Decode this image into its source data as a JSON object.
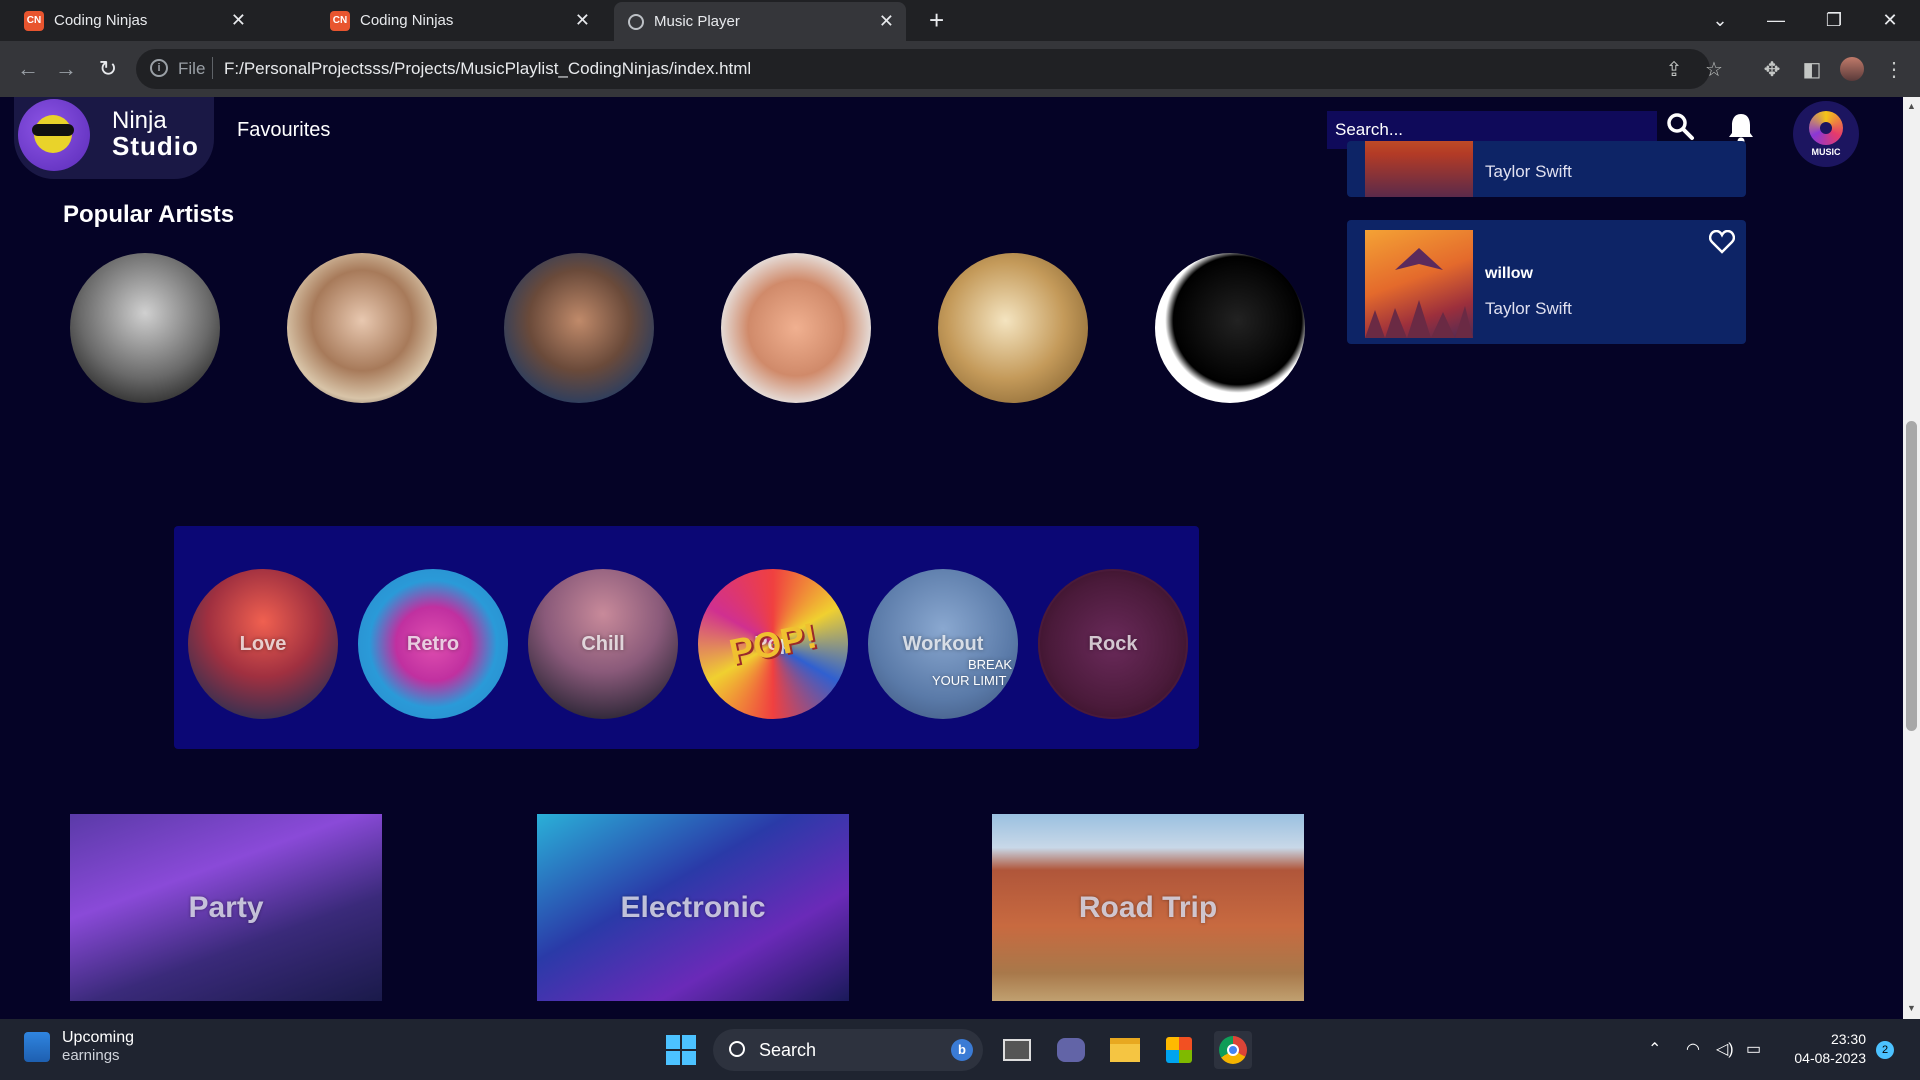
{
  "browser": {
    "tabs": [
      {
        "title": "Coding Ninjas",
        "icon": "coding-ninjas-favicon"
      },
      {
        "title": "Coding Ninjas",
        "icon": "coding-ninjas-favicon"
      },
      {
        "title": "Music Player",
        "icon": "globe-icon"
      }
    ],
    "new_tab": "+",
    "url_scheme": "File",
    "url": "F:/PersonalProjectsss/Projects/MusicPlaylist_CodingNinjas/index.html"
  },
  "header": {
    "logo_line1": "Ninja",
    "logo_line2": "Studio",
    "nav_favourites": "Favourites",
    "search_placeholder": "Search...",
    "music_logo_text": "MUSIC"
  },
  "popular_artists": {
    "title": "Popular Artists",
    "count": 6
  },
  "genres": [
    "Love",
    "Retro",
    "Chill",
    "Pop",
    "Workout",
    "Rock"
  ],
  "genre_overlay_texts": {
    "pop_art": "POP!",
    "workout_art": [
      "BREAK",
      "YOUR LIMIT"
    ]
  },
  "mood_tiles": [
    "Party",
    "Electronic",
    "Road Trip"
  ],
  "song_list": [
    {
      "title": "",
      "artist": "Taylor Swift"
    },
    {
      "title": "willow",
      "artist": "Taylor Swift"
    }
  ],
  "taskbar": {
    "weather_line1": "Upcoming",
    "weather_line2": "earnings",
    "search_label": "Search",
    "bing_label": "b",
    "time": "23:30",
    "date": "04-08-2023",
    "notification_count": "2"
  },
  "colors": {
    "page_bg": "#050326",
    "genre_panel": "#0b0775",
    "song_card": "#0d2466",
    "search_bg": "#0f0a5a"
  }
}
